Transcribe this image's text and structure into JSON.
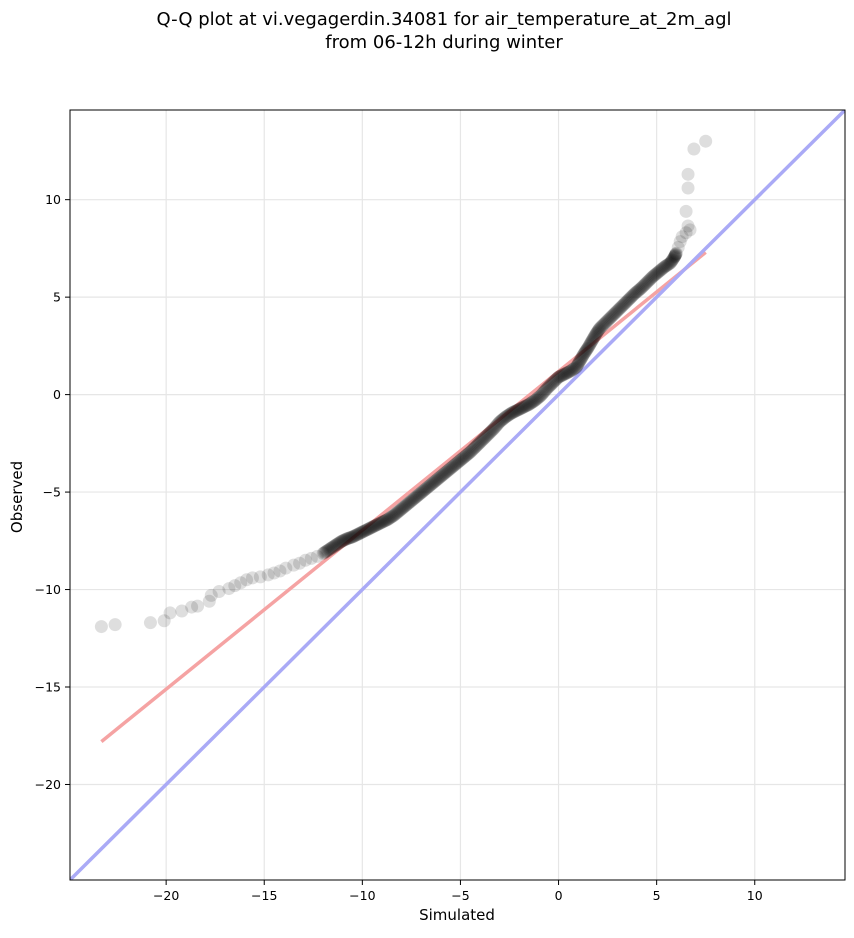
{
  "chart_data": {
    "type": "scatter",
    "title_lines": [
      "Q-Q plot at vi.vegagerdin.34081 for air_temperature_at_2m_agl",
      "from 06-12h during winter"
    ],
    "xlabel": "Simulated",
    "ylabel": "Observed",
    "xlim": [
      -24.9,
      14.6
    ],
    "ylim": [
      -24.9,
      14.6
    ],
    "x_ticks": [
      -20,
      -15,
      -10,
      -5,
      0,
      5,
      10
    ],
    "y_ticks": [
      -20,
      -15,
      -10,
      -5,
      0,
      5,
      10
    ],
    "x_tick_labels": [
      "−20",
      "−15",
      "−10",
      "−5",
      "0",
      "5",
      "10"
    ],
    "y_tick_labels": [
      "−20",
      "−15",
      "−10",
      "−5",
      "0",
      "5",
      "10"
    ],
    "grid": true,
    "series": [
      {
        "kind": "quantiles",
        "color": "#000000",
        "points": [
          [
            -23.3,
            -11.9
          ],
          [
            -22.6,
            -11.8
          ],
          [
            -20.8,
            -11.7
          ],
          [
            -20.1,
            -11.6
          ],
          [
            -19.8,
            -11.2
          ],
          [
            -19.2,
            -11.1
          ],
          [
            -18.7,
            -10.9
          ],
          [
            -18.4,
            -10.85
          ],
          [
            -17.8,
            -10.6
          ],
          [
            -17.7,
            -10.3
          ],
          [
            -17.3,
            -10.1
          ],
          [
            -16.8,
            -9.95
          ],
          [
            -16.5,
            -9.8
          ],
          [
            -16.2,
            -9.65
          ],
          [
            -15.9,
            -9.5
          ],
          [
            -15.6,
            -9.4
          ],
          [
            -15.2,
            -9.35
          ],
          [
            -14.8,
            -9.25
          ],
          [
            -14.5,
            -9.15
          ],
          [
            -14.2,
            -9.05
          ],
          [
            -13.9,
            -8.9
          ],
          [
            -13.5,
            -8.75
          ],
          [
            -13.2,
            -8.65
          ],
          [
            -12.9,
            -8.5
          ],
          [
            -12.6,
            -8.4
          ],
          [
            -12.3,
            -8.3
          ],
          [
            -12.0,
            -8.15
          ],
          [
            -11.7,
            -7.95
          ],
          [
            -11.4,
            -7.75
          ],
          [
            -11.1,
            -7.55
          ],
          [
            -10.8,
            -7.4
          ],
          [
            -10.5,
            -7.3
          ],
          [
            -10.2,
            -7.15
          ],
          [
            -9.9,
            -7.0
          ],
          [
            -9.6,
            -6.85
          ],
          [
            -9.3,
            -6.7
          ],
          [
            -9.0,
            -6.55
          ],
          [
            -8.7,
            -6.4
          ],
          [
            -8.4,
            -6.2
          ],
          [
            -8.1,
            -5.95
          ],
          [
            -7.8,
            -5.7
          ],
          [
            -7.5,
            -5.45
          ],
          [
            -7.2,
            -5.2
          ],
          [
            -6.9,
            -4.95
          ],
          [
            -6.6,
            -4.7
          ],
          [
            -6.3,
            -4.45
          ],
          [
            -6.0,
            -4.2
          ],
          [
            -5.7,
            -3.95
          ],
          [
            -5.4,
            -3.7
          ],
          [
            -5.1,
            -3.45
          ],
          [
            -4.8,
            -3.2
          ],
          [
            -4.5,
            -2.95
          ],
          [
            -4.2,
            -2.65
          ],
          [
            -3.9,
            -2.35
          ],
          [
            -3.6,
            -2.05
          ],
          [
            -3.3,
            -1.75
          ],
          [
            -3.0,
            -1.4
          ],
          [
            -2.7,
            -1.15
          ],
          [
            -2.4,
            -0.95
          ],
          [
            -2.1,
            -0.8
          ],
          [
            -1.8,
            -0.65
          ],
          [
            -1.5,
            -0.5
          ],
          [
            -1.2,
            -0.3
          ],
          [
            -0.9,
            -0.05
          ],
          [
            -0.6,
            0.3
          ],
          [
            -0.3,
            0.6
          ],
          [
            0.0,
            0.9
          ],
          [
            0.3,
            1.05
          ],
          [
            0.6,
            1.2
          ],
          [
            0.9,
            1.4
          ],
          [
            1.1,
            1.75
          ],
          [
            1.3,
            2.1
          ],
          [
            1.5,
            2.4
          ],
          [
            1.7,
            2.75
          ],
          [
            1.9,
            3.1
          ],
          [
            2.1,
            3.4
          ],
          [
            2.4,
            3.7
          ],
          [
            2.7,
            4.0
          ],
          [
            3.0,
            4.3
          ],
          [
            3.3,
            4.6
          ],
          [
            3.6,
            4.9
          ],
          [
            3.9,
            5.2
          ],
          [
            4.2,
            5.45
          ],
          [
            4.5,
            5.75
          ],
          [
            4.8,
            6.05
          ],
          [
            5.1,
            6.3
          ],
          [
            5.4,
            6.55
          ],
          [
            5.7,
            6.75
          ],
          [
            5.9,
            7.05
          ],
          [
            6.0,
            7.25
          ],
          [
            6.1,
            7.55
          ],
          [
            6.2,
            7.85
          ],
          [
            6.3,
            8.1
          ],
          [
            6.5,
            8.3
          ],
          [
            6.7,
            8.45
          ],
          [
            6.6,
            8.65
          ],
          [
            6.5,
            9.4
          ],
          [
            6.6,
            10.6
          ],
          [
            6.6,
            11.3
          ],
          [
            6.9,
            12.6
          ],
          [
            7.5,
            13.0
          ]
        ]
      },
      {
        "kind": "fit-line",
        "color": "#f5a3a3",
        "points": [
          [
            -23.3,
            -17.8
          ],
          [
            7.5,
            7.3
          ]
        ]
      },
      {
        "kind": "reference-1to1",
        "color": "#aaaaf6",
        "points": [
          [
            -24.9,
            -24.9
          ],
          [
            14.6,
            14.6
          ]
        ]
      }
    ]
  }
}
